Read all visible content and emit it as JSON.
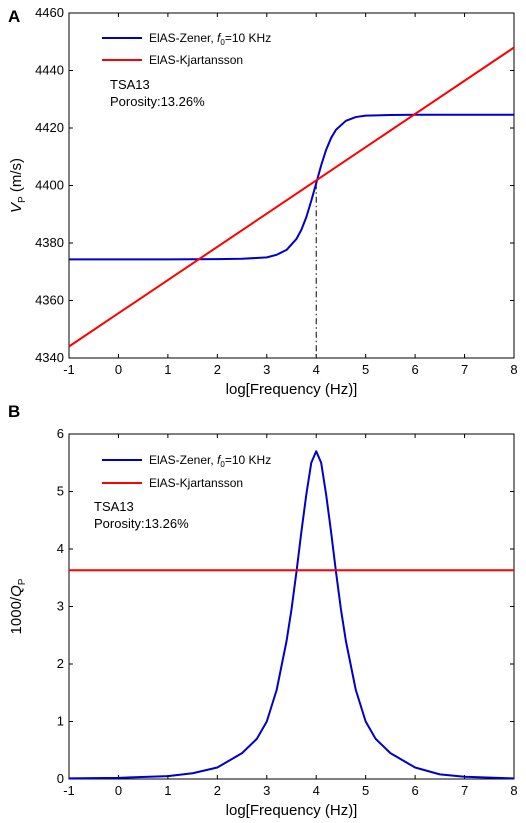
{
  "chart_data": [
    {
      "panel_label": "A",
      "type": "line",
      "xlabel": "log[Frequency (Hz)]",
      "ylabel_main": "V",
      "ylabel_sub": "P",
      "ylabel_unit": " (m/s)",
      "xlim": [
        -1,
        8
      ],
      "ylim": [
        4340,
        4460
      ],
      "xticks": [
        -1,
        0,
        1,
        2,
        3,
        4,
        5,
        6,
        7,
        8
      ],
      "yticks": [
        4340,
        4360,
        4380,
        4400,
        4420,
        4440,
        4460
      ],
      "annotation_lines": [
        "TSA13",
        "Porosity:13.26%"
      ],
      "reference_line": {
        "x": 4,
        "style": "dash-dot"
      },
      "series": [
        {
          "name_main": "ElAS-Zener, ",
          "name_f": "f",
          "name_sub": "0",
          "name_rest": "=10 KHz",
          "color": "#0000cc",
          "x": [
            -1,
            0,
            1,
            2,
            2.5,
            3,
            3.2,
            3.4,
            3.6,
            3.7,
            3.8,
            3.9,
            4,
            4.1,
            4.2,
            4.3,
            4.4,
            4.6,
            4.8,
            5,
            5.5,
            6,
            7,
            8
          ],
          "y": [
            4374.3,
            4374.3,
            4374.3,
            4374.4,
            4374.5,
            4375.0,
            4375.9,
            4377.6,
            4381.4,
            4384.6,
            4389.0,
            4394.7,
            4400.8,
            4407.0,
            4412.4,
            4416.5,
            4419.4,
            4422.5,
            4423.8,
            4424.3,
            4424.5,
            4424.6,
            4424.6,
            4424.6
          ]
        },
        {
          "name": "ElAS-Kjartansson",
          "color": "#ff0000",
          "x": [
            -1,
            8
          ],
          "y": [
            4344,
            4448
          ]
        }
      ]
    },
    {
      "panel_label": "B",
      "type": "line",
      "xlabel": "log[Frequency (Hz)]",
      "ylabel_main": "1000/",
      "ylabel_q": "Q",
      "ylabel_sub": "P",
      "xlim": [
        -1,
        8
      ],
      "ylim": [
        0,
        6
      ],
      "xticks": [
        -1,
        0,
        1,
        2,
        3,
        4,
        5,
        6,
        7,
        8
      ],
      "yticks": [
        0,
        1,
        2,
        3,
        4,
        5,
        6
      ],
      "annotation_lines": [
        "TSA13",
        "Porosity:13.26%"
      ],
      "series": [
        {
          "name_main": "ElAS-Zener, ",
          "name_f": "f",
          "name_sub": "0",
          "name_rest": "=10 KHz",
          "color": "#0000cc",
          "x": [
            -1,
            0,
            1,
            1.5,
            2,
            2.5,
            2.8,
            3,
            3.2,
            3.4,
            3.5,
            3.6,
            3.7,
            3.8,
            3.9,
            4,
            4.1,
            4.2,
            4.3,
            4.4,
            4.5,
            4.6,
            4.8,
            5,
            5.2,
            5.5,
            6,
            6.5,
            7,
            8
          ],
          "y": [
            0.01,
            0.02,
            0.05,
            0.1,
            0.2,
            0.45,
            0.7,
            1.0,
            1.55,
            2.4,
            2.95,
            3.6,
            4.3,
            4.95,
            5.5,
            5.7,
            5.5,
            4.95,
            4.3,
            3.6,
            2.95,
            2.4,
            1.55,
            1.0,
            0.7,
            0.45,
            0.2,
            0.08,
            0.04,
            0.01
          ]
        },
        {
          "name": "ElAS-Kjartansson",
          "color": "#ff0000",
          "x": [
            -1,
            8
          ],
          "y": [
            3.63,
            3.63
          ]
        }
      ]
    }
  ]
}
